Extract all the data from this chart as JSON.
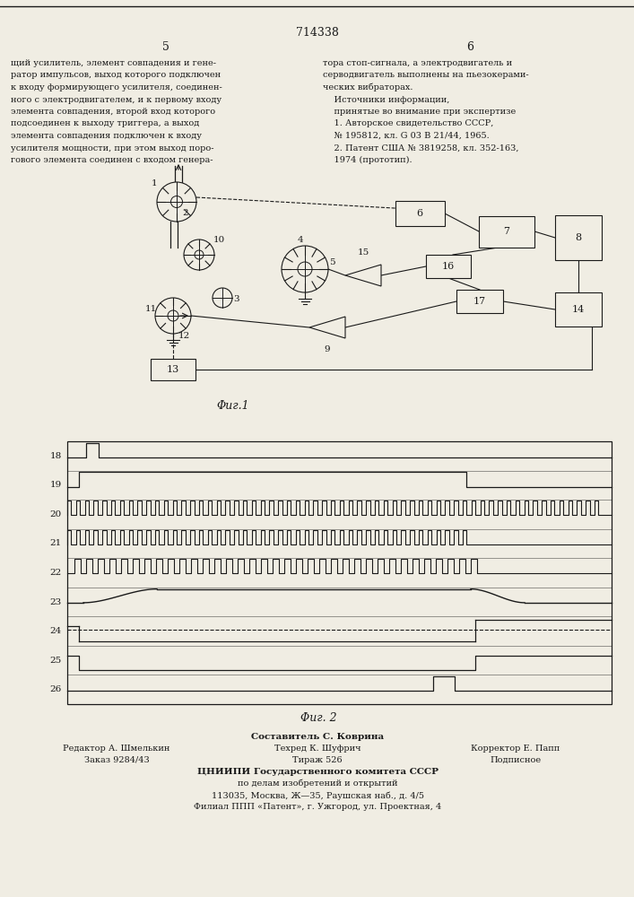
{
  "bg_color": "#f0ede3",
  "line_color": "#1a1a1a",
  "title": "714338",
  "fig1_label": "Φиг.1",
  "fig2_label": "Φиг. 2",
  "waveform_labels": [
    "18",
    "19",
    "20",
    "21",
    "22",
    "23",
    "24",
    "25",
    "26"
  ],
  "left_col_lines": [
    "щий усилитель, элемент совпадения и гене-",
    "ратор импульсов, выход которого подключен",
    "к входу формирующего усилителя, соединен-",
    "ного с электродвигателем, и к первому входу",
    "элемента совпадения, второй вход которого",
    "подсоединен к выходу триггера, а выход",
    "элемента совпадения подключен к входу",
    "усилителя мощности, при этом выход поро-",
    "гового элемента соединен с входом генера-"
  ],
  "right_col_lines": [
    "тора стоп-сигнала, а электродвигатель и",
    "серводвигатель выполнены на пьезокерами-",
    "ческих вибраторах.",
    "    Источники информации,",
    "    принятые во внимание при экспертизе",
    "    1. Авторское свидетельство СССР,",
    "    № 195812, кл. G 03 B 21/44, 1965.",
    "    2. Патент США № 3819258, кл. 352-163,",
    "    1974 (прототип)."
  ],
  "footer_lines": [
    "Составитель С. Коврина",
    "Редактор А. Шмелькин",
    "Техред К. Шуфрич",
    "Корректор Е. Папп",
    "Заказ 9284/43",
    "Тираж 526",
    "Подписное",
    "ЦНИИПИ Государственного комитета СССР",
    "по делам изобретений и открытий",
    "113035, Москва, Ж—35, Раушская наб., д. 4/5",
    "Филиал ППП «Патент», г. Ужгород, ул. Проектная, 4"
  ]
}
